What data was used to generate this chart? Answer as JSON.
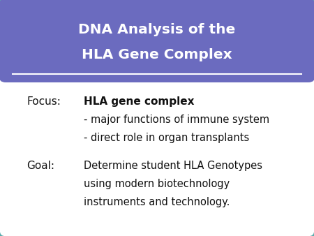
{
  "title_line1": "DNA Analysis of the",
  "title_line2": "HLA Gene Complex",
  "title_bg_color": "#6B6BBF",
  "title_text_color": "#FFFFFF",
  "body_bg_color": "#FFFFFF",
  "border_color": "#5AACAC",
  "focus_label": "Focus:",
  "focus_bold": "HLA gene complex",
  "focus_items": [
    "- major functions of immune system",
    "- direct role in organ transplants"
  ],
  "goal_label": "Goal:",
  "goal_text_lines": [
    "Determine student HLA Genotypes",
    "using modern biotechnology",
    "instruments and technology."
  ],
  "text_color": "#111111",
  "fig_width": 4.5,
  "fig_height": 3.38,
  "dpi": 100
}
